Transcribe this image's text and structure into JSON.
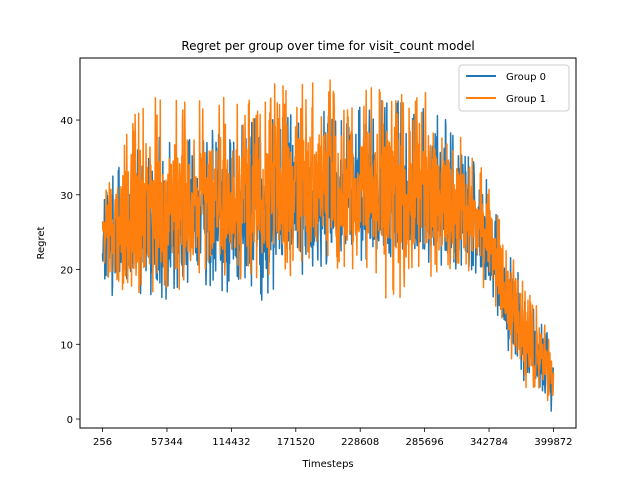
{
  "chart_data": {
    "type": "line",
    "title": "Regret per group over time for visit_count model",
    "xlabel": "Timesteps",
    "ylabel": "Regret",
    "x_ticks": [
      256,
      57344,
      114432,
      171520,
      228608,
      285696,
      342784,
      399872
    ],
    "y_ticks": [
      0,
      10,
      20,
      30,
      40
    ],
    "xlim": [
      -19725,
      419853
    ],
    "ylim": [
      -1.2,
      48.3
    ],
    "grid": false,
    "legend": {
      "placement": "top-right"
    },
    "series": [
      {
        "name": "Group 0",
        "color": "#1f77b4",
        "x": [
          256,
          20000,
          40000,
          60000,
          80000,
          100000,
          120000,
          140000,
          160000,
          180000,
          200000,
          220000,
          240000,
          260000,
          280000,
          300000,
          320000,
          340000,
          350000,
          360000,
          370000,
          380000,
          390000,
          399872
        ],
        "mean": [
          24.5,
          25.0,
          25.5,
          26.0,
          26.5,
          27.0,
          27.5,
          27.8,
          28.2,
          28.7,
          29.0,
          29.2,
          29.3,
          29.1,
          28.6,
          28.0,
          27.2,
          24.0,
          20.0,
          15.0,
          11.5,
          9.0,
          7.0,
          5.0
        ],
        "min": [
          13.2,
          18.5,
          15.6,
          14.3,
          16.1,
          16.5,
          17.0,
          15.7,
          18.0,
          19.5,
          20.0,
          21.3,
          20.5,
          21.0,
          20.3,
          19.5,
          20.0,
          17.5,
          14.0,
          9.0,
          5.5,
          3.5,
          1.5,
          0.9
        ],
        "max": [
          35.0,
          36.0,
          37.5,
          38.0,
          38.5,
          39.0,
          40.0,
          40.5,
          41.0,
          41.5,
          42.0,
          42.5,
          43.0,
          43.0,
          42.0,
          41.0,
          38.0,
          33.0,
          28.0,
          24.0,
          20.5,
          17.0,
          14.0,
          8.5
        ]
      },
      {
        "name": "Group 1",
        "color": "#ff7f0e",
        "x": [
          256,
          20000,
          40000,
          60000,
          80000,
          100000,
          120000,
          140000,
          160000,
          180000,
          200000,
          220000,
          240000,
          260000,
          280000,
          300000,
          320000,
          340000,
          350000,
          360000,
          370000,
          380000,
          390000,
          399872
        ],
        "mean": [
          26.0,
          26.5,
          27.5,
          28.0,
          28.5,
          29.0,
          29.5,
          30.0,
          30.5,
          31.0,
          31.3,
          31.5,
          31.5,
          31.2,
          30.5,
          29.5,
          28.5,
          25.0,
          21.0,
          16.0,
          12.0,
          9.5,
          7.5,
          5.5
        ],
        "min": [
          19.0,
          16.5,
          17.0,
          16.8,
          17.5,
          18.0,
          18.5,
          18.5,
          19.0,
          19.5,
          20.0,
          20.0,
          19.0,
          13.8,
          18.5,
          19.5,
          20.0,
          17.0,
          13.0,
          9.0,
          5.0,
          3.0,
          2.0,
          2.5
        ],
        "max": [
          29.0,
          40.5,
          43.0,
          43.5,
          42.0,
          44.0,
          43.0,
          44.5,
          45.0,
          45.0,
          45.5,
          45.5,
          46.0,
          46.0,
          44.5,
          42.0,
          38.0,
          33.0,
          28.0,
          24.0,
          19.5,
          16.5,
          14.0,
          9.0
        ]
      }
    ]
  }
}
